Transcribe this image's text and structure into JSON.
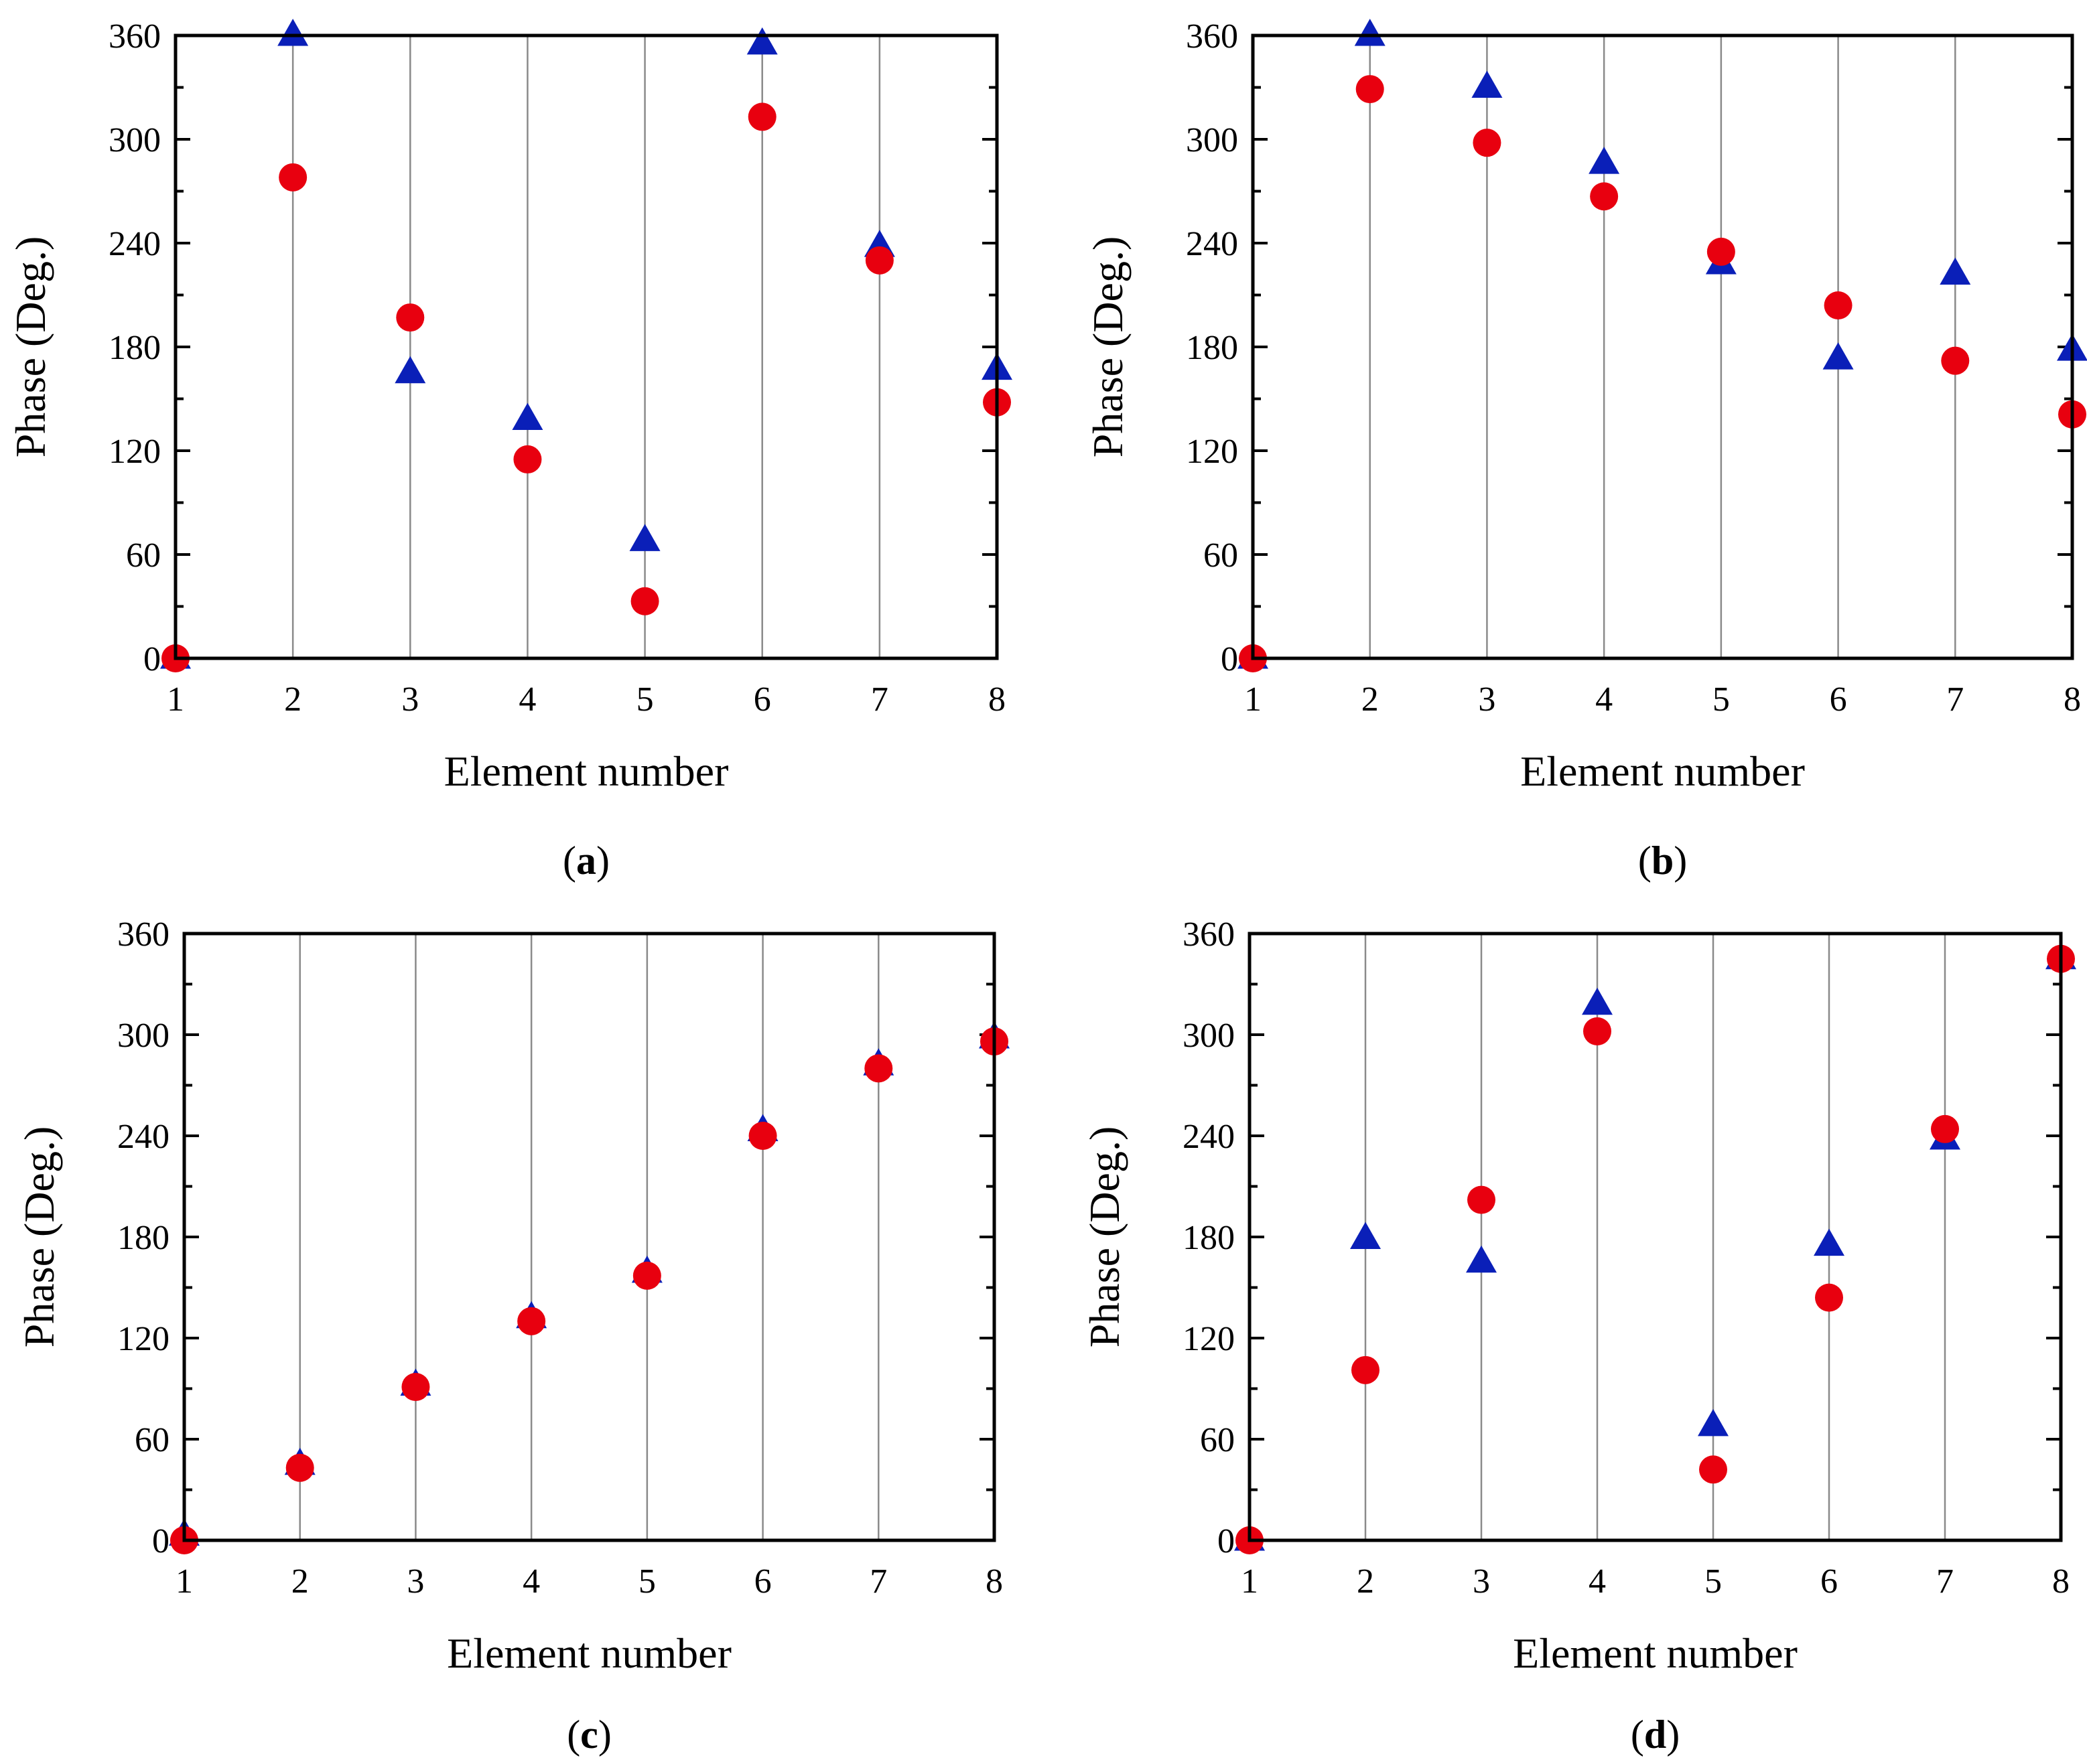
{
  "colors": {
    "triangle_series": "#0a1fb8",
    "circle_series": "#e8000f"
  },
  "chart_data": [
    {
      "type": "scatter",
      "panel_label": "a",
      "xlabel": "Element number",
      "ylabel": "Phase (Deg.)",
      "xlim": [
        1,
        8
      ],
      "ylim": [
        0,
        360
      ],
      "x_ticks": [
        "1",
        "2",
        "3",
        "4",
        "5",
        "6",
        "7",
        "8"
      ],
      "y_ticks": [
        "0",
        "60",
        "120",
        "180",
        "240",
        "300",
        "360"
      ],
      "vertical_grid": true,
      "series": [
        {
          "name": "triangle",
          "marker": "triangle",
          "color": "#0a1fb8",
          "x": [
            1,
            2,
            3,
            4,
            5,
            6,
            7,
            8
          ],
          "y": [
            0,
            360,
            165,
            138,
            68,
            355,
            238,
            167
          ]
        },
        {
          "name": "circle",
          "marker": "circle",
          "color": "#e8000f",
          "x": [
            1,
            2,
            3,
            4,
            5,
            6,
            7,
            8
          ],
          "y": [
            0,
            278,
            197,
            115,
            33,
            313,
            230,
            148
          ]
        }
      ]
    },
    {
      "type": "scatter",
      "panel_label": "b",
      "xlabel": "Element number",
      "ylabel": "Phase (Deg.)",
      "xlim": [
        1,
        8
      ],
      "ylim": [
        0,
        360
      ],
      "x_ticks": [
        "1",
        "2",
        "3",
        "4",
        "5",
        "6",
        "7",
        "8"
      ],
      "y_ticks": [
        "0",
        "60",
        "120",
        "180",
        "240",
        "300",
        "360"
      ],
      "vertical_grid": true,
      "series": [
        {
          "name": "triangle",
          "marker": "triangle",
          "color": "#0a1fb8",
          "x": [
            1,
            2,
            3,
            4,
            5,
            6,
            7,
            8
          ],
          "y": [
            0,
            360,
            330,
            286,
            228,
            173,
            222,
            178
          ]
        },
        {
          "name": "circle",
          "marker": "circle",
          "color": "#e8000f",
          "x": [
            1,
            2,
            3,
            4,
            5,
            6,
            7,
            8
          ],
          "y": [
            0,
            329,
            298,
            267,
            235,
            204,
            172,
            141
          ]
        }
      ]
    },
    {
      "type": "scatter",
      "panel_label": "c",
      "xlabel": "Element number",
      "ylabel": "Phase (Deg.)",
      "xlim": [
        1,
        8
      ],
      "ylim": [
        0,
        360
      ],
      "x_ticks": [
        "1",
        "2",
        "3",
        "4",
        "5",
        "6",
        "7",
        "8"
      ],
      "y_ticks": [
        "0",
        "60",
        "120",
        "180",
        "240",
        "300",
        "360"
      ],
      "vertical_grid": true,
      "series": [
        {
          "name": "triangle",
          "marker": "triangle",
          "color": "#0a1fb8",
          "x": [
            1,
            2,
            3,
            4,
            5,
            6,
            7,
            8
          ],
          "y": [
            3,
            45,
            92,
            132,
            159,
            243,
            282,
            298
          ]
        },
        {
          "name": "circle",
          "marker": "circle",
          "color": "#e8000f",
          "x": [
            1,
            2,
            3,
            4,
            5,
            6,
            7,
            8
          ],
          "y": [
            0,
            43,
            91,
            130,
            157,
            240,
            280,
            296
          ]
        }
      ]
    },
    {
      "type": "scatter",
      "panel_label": "d",
      "xlabel": "Element number",
      "ylabel": "Phase (Deg.)",
      "xlim": [
        1,
        8
      ],
      "ylim": [
        0,
        360
      ],
      "x_ticks": [
        "1",
        "2",
        "3",
        "4",
        "5",
        "6",
        "7",
        "8"
      ],
      "y_ticks": [
        "0",
        "60",
        "120",
        "180",
        "240",
        "300",
        "360"
      ],
      "vertical_grid": true,
      "series": [
        {
          "name": "triangle",
          "marker": "triangle",
          "color": "#0a1fb8",
          "x": [
            1,
            2,
            3,
            4,
            5,
            6,
            7,
            8
          ],
          "y": [
            0,
            179,
            165,
            318,
            68,
            175,
            238,
            345
          ]
        },
        {
          "name": "circle",
          "marker": "circle",
          "color": "#e8000f",
          "x": [
            1,
            2,
            3,
            4,
            5,
            6,
            7,
            8
          ],
          "y": [
            0,
            101,
            202,
            302,
            42,
            144,
            244,
            345
          ]
        }
      ]
    }
  ]
}
